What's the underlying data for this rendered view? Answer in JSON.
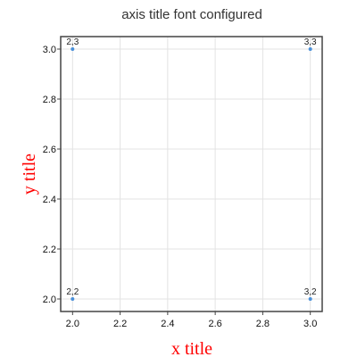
{
  "chart_data": {
    "type": "scatter",
    "title": "axis title font configured",
    "xlabel": "x title",
    "ylabel": "y title",
    "xlim": [
      1.95,
      3.05
    ],
    "ylim": [
      1.95,
      3.05
    ],
    "x_ticks": [
      2.0,
      2.2,
      2.4,
      2.6,
      2.8,
      3.0
    ],
    "y_ticks": [
      2.0,
      2.2,
      2.4,
      2.6,
      2.8,
      3.0
    ],
    "x_tick_labels": [
      "2.0",
      "2.2",
      "2.4",
      "2.6",
      "2.8",
      "3.0"
    ],
    "y_tick_labels": [
      "2.0",
      "2.2",
      "2.4",
      "2.6",
      "2.8",
      "3.0"
    ],
    "grid": true,
    "points": [
      {
        "x": 2,
        "y": 3,
        "label": "2,3"
      },
      {
        "x": 3,
        "y": 3,
        "label": "3,3"
      },
      {
        "x": 2,
        "y": 2,
        "label": "2,2"
      },
      {
        "x": 3,
        "y": 2,
        "label": "3,2"
      }
    ],
    "marker_color": "#4a90d9",
    "axis_title_color": "#ff0000"
  }
}
